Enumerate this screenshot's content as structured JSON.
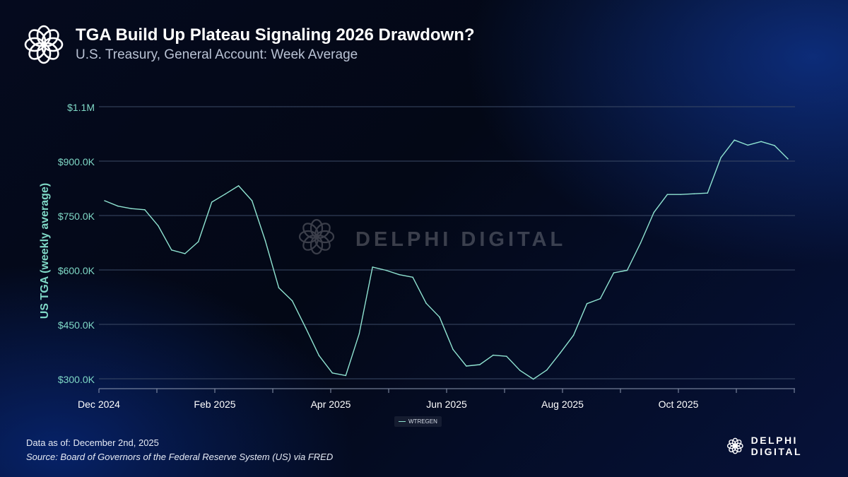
{
  "header": {
    "title": "TGA Build Up Plateau Signaling 2026 Drawdown?",
    "subtitle": "U.S. Treasury, General Account: Week Average"
  },
  "footer": {
    "data_as_of": "Data as of: December 2nd, 2025",
    "source": "Source: Board of Governors of the Federal Reserve System (US) via FRED"
  },
  "brand": {
    "name": "DELPHI DIGITAL",
    "watermark": "DELPHI DIGITAL"
  },
  "colors": {
    "line": "#8fe3d1",
    "axis_label": "#7fd8c6",
    "grid": "#3b4a66"
  },
  "chart_data": {
    "type": "line",
    "ylabel": "US TGA (weekly average)",
    "xlabel": "",
    "ylim": [
      300,
      1100
    ],
    "y_ticks": [
      {
        "value": 300,
        "label": "$300.0K"
      },
      {
        "value": 450,
        "label": "$450.0K"
      },
      {
        "value": 600,
        "label": "$600.0K"
      },
      {
        "value": 750,
        "label": "$750.0K"
      },
      {
        "value": 900,
        "label": "$900.0K"
      },
      {
        "value": 1050,
        "label": "$1.1M"
      }
    ],
    "x_ticks": [
      "Dec 2024",
      "Feb 2025",
      "Apr 2025",
      "Jun 2025",
      "Aug 2025",
      "Oct 2025"
    ],
    "legend": [
      "WTREGEN"
    ],
    "series": [
      {
        "name": "WTREGEN",
        "week_index": [
          0,
          1,
          2,
          3,
          4,
          5,
          6,
          7,
          8,
          9,
          10,
          11,
          12,
          13,
          14,
          15,
          16,
          17,
          18,
          19,
          20,
          21,
          22,
          23,
          24,
          25,
          26,
          27,
          28,
          29,
          30,
          31,
          32,
          33,
          34,
          35,
          36,
          37,
          38,
          39,
          40,
          41,
          42,
          43,
          44,
          45,
          46,
          47,
          48,
          49,
          50,
          51
        ],
        "values": [
          791,
          776,
          769,
          766,
          722,
          655,
          645,
          678,
          787,
          809,
          832,
          791,
          680,
          551,
          515,
          441,
          364,
          316,
          309,
          424,
          608,
          599,
          587,
          580,
          508,
          470,
          381,
          335,
          339,
          365,
          362,
          323,
          299,
          324,
          371,
          420,
          507,
          521,
          592,
          599,
          674,
          759,
          808,
          808,
          810,
          812,
          910,
          958,
          944,
          954,
          943,
          906
        ]
      }
    ]
  }
}
